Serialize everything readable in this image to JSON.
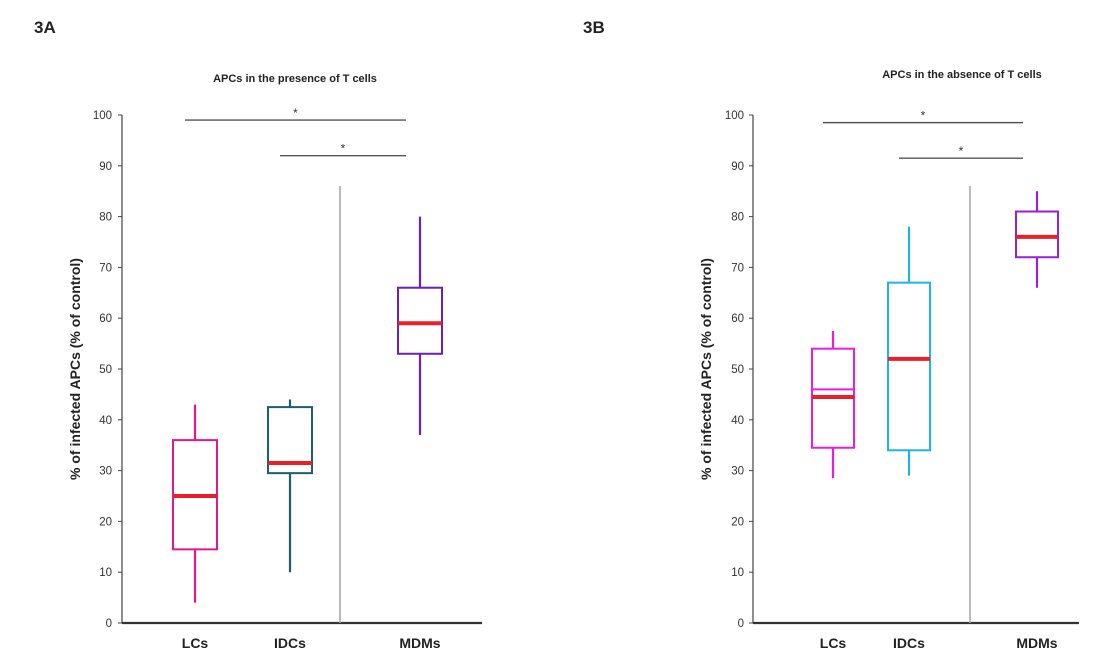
{
  "charts": [
    {
      "id": "3A",
      "panel_label": "3A",
      "chart_data": {
        "type": "boxplot",
        "title": "APCs in the presence of T cells",
        "ylabel": "% of infected APCs (% of control)",
        "xlabel": "",
        "ylim": [
          0,
          100
        ],
        "yticks": [
          0,
          10,
          20,
          30,
          40,
          50,
          60,
          70,
          80,
          90,
          100
        ],
        "grid": false,
        "categories": [
          "LCs",
          "IDCs",
          "MDMs"
        ],
        "boxes": [
          {
            "category": "LCs",
            "min": 4,
            "q1": 14.5,
            "median": 25,
            "q3": 36,
            "max": 43,
            "color": "#e0198c"
          },
          {
            "category": "IDCs",
            "min": 10,
            "q1": 29.5,
            "median": 31.5,
            "q3": 42.5,
            "max": 44,
            "color": "#1d5f6e"
          },
          {
            "category": "MDMs",
            "min": 37,
            "q1": 53,
            "median": 59,
            "q3": 66,
            "max": 80,
            "color": "#6a1fbf"
          }
        ],
        "median_color": "#e8202a",
        "significance": [
          {
            "from": "LCs",
            "to": "MDMs",
            "y": 99,
            "label": "*"
          },
          {
            "from": "IDCs",
            "to": "MDMs",
            "y": 92,
            "label": "*"
          }
        ],
        "separator_after": "IDCs"
      }
    },
    {
      "id": "3B",
      "panel_label": "3B",
      "chart_data": {
        "type": "boxplot",
        "title": "APCs in the absence of T cells",
        "ylabel": "% of infected APCs (% of control)",
        "xlabel": "",
        "ylim": [
          0,
          100
        ],
        "yticks": [
          0,
          10,
          20,
          30,
          40,
          50,
          60,
          70,
          80,
          90,
          100
        ],
        "grid": false,
        "categories": [
          "LCs",
          "IDCs",
          "MDMs"
        ],
        "boxes": [
          {
            "category": "LCs",
            "min": 28.5,
            "q1": 34.5,
            "median": 44.5,
            "median2": 46,
            "q3": 54,
            "max": 57.5,
            "color": "#e41ee4"
          },
          {
            "category": "IDCs",
            "min": 29,
            "q1": 34,
            "median": 52,
            "q3": 67,
            "max": 78,
            "color": "#1fb3e8"
          },
          {
            "category": "MDMs",
            "min": 66,
            "q1": 72,
            "median": 76,
            "q3": 81,
            "max": 85,
            "color": "#9a1fd6"
          }
        ],
        "median_color": "#e8202a",
        "significance": [
          {
            "from": "LCs",
            "to": "MDMs",
            "y": 98.5,
            "label": "*"
          },
          {
            "from": "IDCs",
            "to": "MDMs",
            "y": 91.5,
            "label": "*"
          }
        ],
        "separator_after": "IDCs"
      }
    }
  ]
}
